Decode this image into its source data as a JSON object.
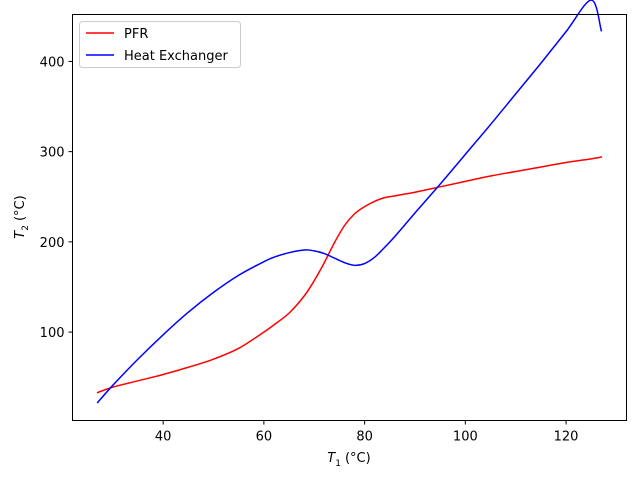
{
  "chart_data": {
    "type": "line",
    "title": "",
    "xlabel": {
      "main": "T",
      "sub": "1",
      "unit": "(°C)"
    },
    "ylabel": {
      "main": "T",
      "sub": "2",
      "unit": "(°C)"
    },
    "xlim": [
      22,
      132
    ],
    "ylim": [
      2,
      452
    ],
    "xticks": [
      40,
      60,
      80,
      100,
      120
    ],
    "yticks": [
      100,
      200,
      300,
      400
    ],
    "grid": false,
    "legend_position": "top-left",
    "series": [
      {
        "name": "PFR",
        "color": "#ff0000",
        "x": [
          27,
          30,
          35,
          40,
          45,
          50,
          55,
          60,
          62,
          65,
          68,
          70,
          72,
          74,
          76,
          78,
          80,
          82,
          84,
          86,
          88,
          90,
          95,
          100,
          105,
          110,
          115,
          120,
          125,
          127
        ],
        "y": [
          33,
          39,
          46,
          53,
          61,
          70,
          82,
          100,
          108,
          121,
          140,
          157,
          177,
          199,
          218,
          231,
          239,
          245,
          249,
          251,
          253,
          255,
          261,
          267,
          273,
          278,
          283,
          288,
          292,
          294
        ]
      },
      {
        "name": "Heat Exchanger",
        "color": "#0000ff",
        "x": [
          27,
          30,
          35,
          40,
          45,
          50,
          55,
          60,
          62,
          65,
          68,
          70,
          72,
          74,
          76,
          78,
          80,
          82,
          84,
          86,
          90,
          95,
          100,
          105,
          110,
          115,
          120,
          125,
          127
        ],
        "y": [
          22,
          41,
          70,
          97,
          122,
          144,
          163,
          178,
          183,
          188,
          191,
          190,
          187,
          182,
          177,
          174,
          176,
          183,
          194,
          206,
          232,
          264,
          297,
          330,
          364,
          398,
          433,
          468,
          434
        ]
      }
    ]
  }
}
